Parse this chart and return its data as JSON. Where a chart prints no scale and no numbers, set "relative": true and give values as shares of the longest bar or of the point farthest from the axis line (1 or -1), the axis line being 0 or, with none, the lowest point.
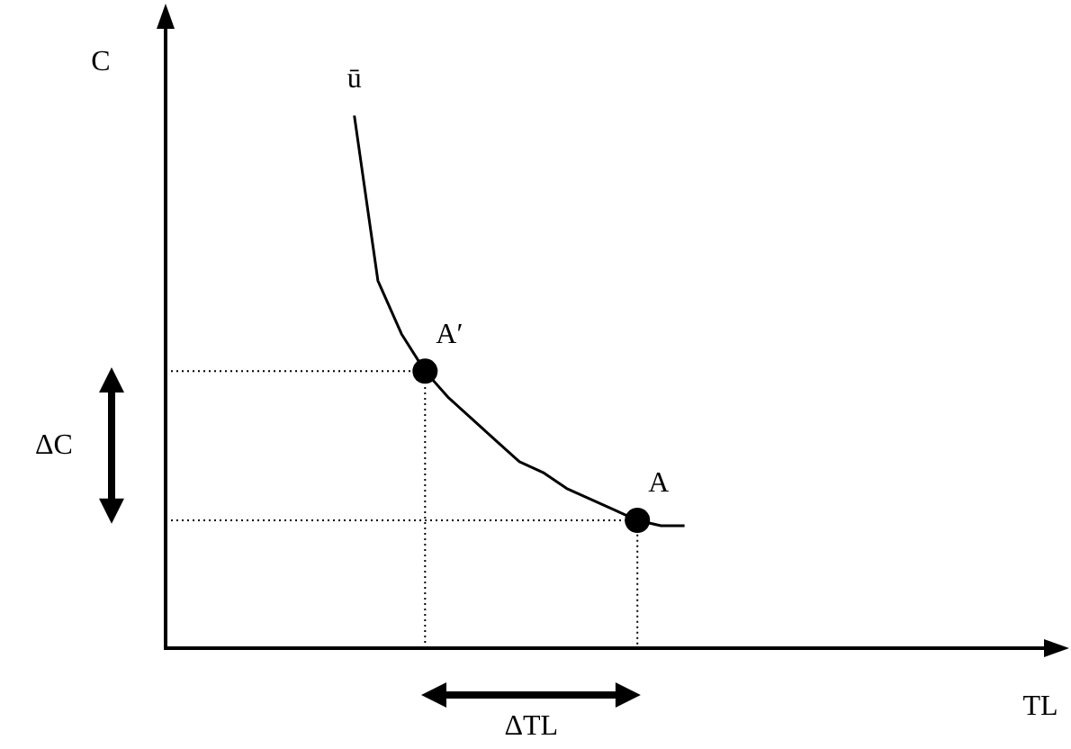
{
  "chart_data": {
    "type": "line",
    "relative": true,
    "xlabel": "TL",
    "ylabel": "C",
    "legend": false,
    "annotations": [
      "ΔC",
      "ΔTL"
    ],
    "ref_lines": [
      {
        "axis": "y",
        "value": 0.52,
        "label": "A′",
        "line_style": "dotted",
        "color": "#000000"
      },
      {
        "axis": "y",
        "value": 0.24,
        "label": "A",
        "line_style": "dotted",
        "color": "#000000"
      }
    ],
    "categories": [
      null,
      null,
      null,
      null,
      null,
      null,
      null,
      null,
      null,
      null,
      null,
      null,
      null,
      null,
      null,
      null,
      null,
      null,
      null,
      null,
      null,
      null,
      null,
      null,
      null,
      null,
      null,
      null,
      null,
      null,
      null,
      null,
      null,
      null,
      null,
      null,
      null,
      null,
      null
    ],
    "series": [
      {
        "name": "ū",
        "color": "#000000",
        "values": [
          null,
          null,
          null,
          null,
          null,
          null,
          null,
          null,
          1,
          0.69,
          0.59,
          0.52,
          0.47,
          0.43,
          0.39,
          0.35,
          0.33,
          0.3,
          0.28,
          0.26,
          0.24,
          0.23,
          0.23,
          null,
          null,
          null,
          null,
          null,
          null,
          null,
          null,
          null,
          null,
          null,
          null,
          null,
          null,
          null,
          null
        ]
      }
    ]
  }
}
